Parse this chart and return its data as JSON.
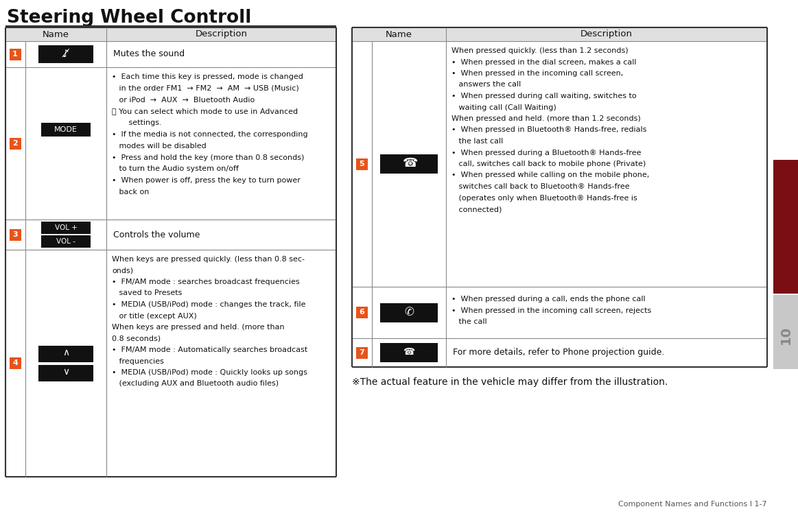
{
  "title": "Steering Wheel Controll",
  "bg_color": "#ffffff",
  "header_bg": "#e0e0e0",
  "light_gray_bg": "#f0f0f0",
  "border_color": "#888888",
  "border_dark": "#333333",
  "orange_color": "#E8531A",
  "black_btn_color": "#111111",
  "white_text": "#ffffff",
  "dark_text": "#111111",
  "gray_text": "#555555",
  "footer_text": "Component Names and Functions I 1-7",
  "note_text": "※The actual feature in the vehicle may differ from the illustration.",
  "sidebar_color": "#7a0e14",
  "sidebar_gray": "#c8c8c8"
}
